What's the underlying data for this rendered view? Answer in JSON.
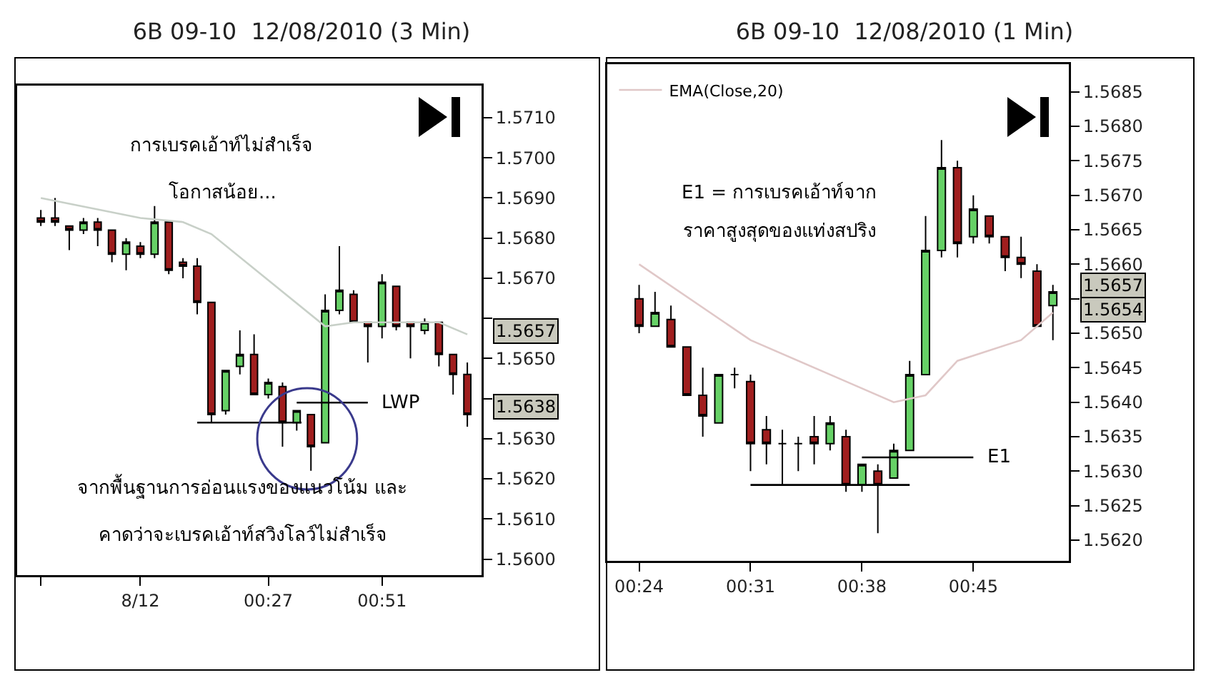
{
  "chart_data": [
    {
      "type": "candlestick",
      "title": "6B 09-10  12/08/2010 (3 Min)",
      "x": [
        "2010-08-11T23:39",
        "2010-08-11T23:42",
        "2010-08-11T23:45",
        "2010-08-11T23:48",
        "2010-08-11T23:51",
        "2010-08-11T23:54",
        "2010-08-11T23:57",
        "2010-08-12T00:00",
        "2010-08-12T00:03",
        "2010-08-12T00:06",
        "2010-08-12T00:09",
        "2010-08-12T00:12",
        "2010-08-12T00:15",
        "2010-08-12T00:18",
        "2010-08-12T00:21",
        "2010-08-12T00:24",
        "2010-08-12T00:27",
        "2010-08-12T00:30",
        "2010-08-12T00:33",
        "2010-08-12T00:36",
        "2010-08-12T00:39",
        "2010-08-12T00:42",
        "2010-08-12T00:45",
        "2010-08-12T00:48",
        "2010-08-12T00:51",
        "2010-08-12T00:54",
        "2010-08-12T00:57",
        "2010-08-12T01:00",
        "2010-08-12T01:03",
        "2010-08-12T01:06",
        "2010-08-12T01:09"
      ],
      "ohlc": [
        [
          1.5685,
          1.5687,
          1.5683,
          1.5684
        ],
        [
          1.5685,
          1.569,
          1.5683,
          1.5684
        ],
        [
          1.5683,
          1.5683,
          1.5677,
          1.5682
        ],
        [
          1.5682,
          1.5685,
          1.5681,
          1.5684
        ],
        [
          1.5684,
          1.5685,
          1.5678,
          1.5682
        ],
        [
          1.5682,
          1.5682,
          1.5674,
          1.5676
        ],
        [
          1.5676,
          1.568,
          1.5672,
          1.5679
        ],
        [
          1.5678,
          1.5679,
          1.5675,
          1.5676
        ],
        [
          1.5676,
          1.5688,
          1.5675,
          1.5684
        ],
        [
          1.5684,
          1.5684,
          1.5671,
          1.5672
        ],
        [
          1.5674,
          1.5675,
          1.567,
          1.5673
        ],
        [
          1.5673,
          1.5675,
          1.5661,
          1.5664
        ],
        [
          1.5664,
          1.5664,
          1.5634,
          1.5636
        ],
        [
          1.5637,
          1.5647,
          1.5636,
          1.5647
        ],
        [
          1.5648,
          1.5657,
          1.5646,
          1.5651
        ],
        [
          1.5651,
          1.5656,
          1.5641,
          1.5641
        ],
        [
          1.5641,
          1.5645,
          1.564,
          1.5644
        ],
        [
          1.5643,
          1.5644,
          1.5628,
          1.5634
        ],
        [
          1.5634,
          1.5637,
          1.5632,
          1.5637
        ],
        [
          1.5636,
          1.5636,
          1.5622,
          1.5628
        ],
        [
          1.5629,
          1.5666,
          1.5629,
          1.5662
        ],
        [
          1.5662,
          1.5678,
          1.5661,
          1.5667
        ],
        [
          1.5666,
          1.5667,
          1.5659,
          1.5659
        ],
        [
          1.5659,
          1.5659,
          1.5649,
          1.5658
        ],
        [
          1.5658,
          1.5671,
          1.5655,
          1.5669
        ],
        [
          1.5668,
          1.5668,
          1.5657,
          1.5658
        ],
        [
          1.5659,
          1.5659,
          1.565,
          1.5658
        ],
        [
          1.5657,
          1.566,
          1.5656,
          1.5659
        ],
        [
          1.5659,
          1.5659,
          1.5648,
          1.5651
        ],
        [
          1.5651,
          1.5651,
          1.5641,
          1.5646
        ],
        [
          1.5646,
          1.5649,
          1.5633,
          1.5636
        ]
      ],
      "colors": [
        "#a01e1e",
        "#a01e1e",
        "#a01e1e",
        "#66d166",
        "#a01e1e",
        "#a01e1e",
        "#66d166",
        "#a01e1e",
        "#66d166",
        "#a01e1e",
        "#a01e1e",
        "#a01e1e",
        "#a01e1e",
        "#66d166",
        "#66d166",
        "#a01e1e",
        "#66d166",
        "#a01e1e",
        "#66d166",
        "#a01e1e",
        "#66d166",
        "#66d166",
        "#a01e1e",
        "#a01e1e",
        "#66d166",
        "#a01e1e",
        "#a01e1e",
        "#66d166",
        "#a01e1e",
        "#a01e1e",
        "#a01e1e"
      ],
      "series": [
        {
          "type": "line",
          "color": "#c8d0c8",
          "x": [
            "2010-08-11T23:39",
            "2010-08-12T00:00",
            "2010-08-12T00:09",
            "2010-08-12T00:15",
            "2010-08-12T00:39",
            "2010-08-12T00:45",
            "2010-08-12T01:03",
            "2010-08-12T01:09"
          ],
          "values": [
            1.569,
            1.5685,
            1.5684,
            1.5681,
            1.5658,
            1.5659,
            1.5659,
            1.5656
          ]
        },
        {
          "type": "line",
          "color": "#000000",
          "x": [
            "2010-08-12T00:12",
            "2010-08-12T00:34"
          ],
          "values": [
            1.5634,
            1.5634
          ]
        },
        {
          "type": "line",
          "color": "#000000",
          "x": [
            "2010-08-12T00:33",
            "2010-08-12T00:48"
          ],
          "values": [
            1.5639,
            1.5639
          ]
        }
      ],
      "annotations": [
        "การเบรคเอ้าท์ไม่สำเร็จ",
        "โอกาสน้อย...",
        "จากพื้นฐานการอ่อนแรงของแนวโน้ม และ",
        "คาดว่าจะเบรคเอ้าท์สวิงโลว์ไม่สำเร็จ",
        {
          "text": "LWP",
          "x": "2010-08-12T00:48",
          "y": 1.5639
        },
        "1.5657",
        "1.5638"
      ],
      "xlim": [
        "2010-08-11T23:34",
        "2010-08-12T01:12"
      ],
      "xticks": [
        {
          "value": "2010-08-11T23:39",
          "label": null
        },
        {
          "value": "2010-08-12T00:00",
          "label": "8/12"
        },
        {
          "value": "2010-08-12T00:27",
          "label": "00:27"
        },
        {
          "value": "2010-08-12T00:51",
          "label": "00:51"
        }
      ],
      "ylim": [
        1.5596,
        1.5718
      ],
      "yticks": [
        {
          "value": 1.56,
          "label": "1.5600"
        },
        {
          "value": 1.561,
          "label": "1.5610"
        },
        {
          "value": 1.562,
          "label": "1.5620"
        },
        {
          "value": 1.563,
          "label": "1.5630"
        },
        {
          "value": 1.564,
          "label": null
        },
        {
          "value": 1.565,
          "label": "1.5650"
        },
        {
          "value": 1.566,
          "label": null
        },
        {
          "value": 1.567,
          "label": "1.5670"
        },
        {
          "value": 1.568,
          "label": "1.5680"
        },
        {
          "value": 1.569,
          "label": "1.5690"
        },
        {
          "value": 1.57,
          "label": "1.5700"
        },
        {
          "value": 1.571,
          "label": "1.5710"
        }
      ]
    },
    {
      "type": "candlestick",
      "title": "6B 09-10  12/08/2010 (1 Min)",
      "x": [
        "2010-08-12T00:24",
        "2010-08-12T00:25",
        "2010-08-12T00:26",
        "2010-08-12T00:27",
        "2010-08-12T00:28",
        "2010-08-12T00:29",
        "2010-08-12T00:30",
        "2010-08-12T00:31",
        "2010-08-12T00:32",
        "2010-08-12T00:33",
        "2010-08-12T00:34",
        "2010-08-12T00:35",
        "2010-08-12T00:36",
        "2010-08-12T00:37",
        "2010-08-12T00:38",
        "2010-08-12T00:39",
        "2010-08-12T00:40",
        "2010-08-12T00:41",
        "2010-08-12T00:42",
        "2010-08-12T00:43",
        "2010-08-12T00:44",
        "2010-08-12T00:45",
        "2010-08-12T00:46",
        "2010-08-12T00:47",
        "2010-08-12T00:48",
        "2010-08-12T00:49",
        "2010-08-12T00:50"
      ],
      "ohlc": [
        [
          1.5655,
          1.5657,
          1.565,
          1.5651
        ],
        [
          1.5651,
          1.5656,
          1.5651,
          1.5653
        ],
        [
          1.5652,
          1.5654,
          1.5648,
          1.5648
        ],
        [
          1.5648,
          1.5648,
          1.5641,
          1.5641
        ],
        [
          1.5641,
          1.5645,
          1.5635,
          1.5638
        ],
        [
          1.5637,
          1.5644,
          1.5637,
          1.5644
        ],
        [
          1.5644,
          1.5645,
          1.5642,
          1.5644
        ],
        [
          1.5643,
          1.5644,
          1.563,
          1.5634
        ],
        [
          1.5636,
          1.5638,
          1.5631,
          1.5634
        ],
        [
          1.5634,
          1.5636,
          1.5628,
          1.5634
        ],
        [
          1.5634,
          1.5635,
          1.563,
          1.5634
        ],
        [
          1.5635,
          1.5638,
          1.5631,
          1.5634
        ],
        [
          1.5634,
          1.5638,
          1.5633,
          1.5637
        ],
        [
          1.5635,
          1.5636,
          1.5627,
          1.5628
        ],
        [
          1.5628,
          1.5631,
          1.5627,
          1.5631
        ],
        [
          1.563,
          1.5631,
          1.5621,
          1.5628
        ],
        [
          1.5629,
          1.5634,
          1.5629,
          1.5633
        ],
        [
          1.5633,
          1.5646,
          1.5633,
          1.5644
        ],
        [
          1.5644,
          1.5667,
          1.5644,
          1.5662
        ],
        [
          1.5662,
          1.5678,
          1.5661,
          1.5674
        ],
        [
          1.5674,
          1.5675,
          1.5661,
          1.5663
        ],
        [
          1.5664,
          1.567,
          1.5663,
          1.5668
        ],
        [
          1.5667,
          1.5667,
          1.5663,
          1.5664
        ],
        [
          1.5664,
          1.5664,
          1.5659,
          1.5661
        ],
        [
          1.5661,
          1.5664,
          1.5658,
          1.566
        ],
        [
          1.5659,
          1.566,
          1.5651,
          1.5651
        ],
        [
          1.5654,
          1.5657,
          1.5649,
          1.5656
        ]
      ],
      "colors": [
        "#a01e1e",
        "#66d166",
        "#a01e1e",
        "#a01e1e",
        "#a01e1e",
        "#66d166",
        "#000000",
        "#a01e1e",
        "#a01e1e",
        "#000000",
        "#000000",
        "#a01e1e",
        "#66d166",
        "#a01e1e",
        "#66d166",
        "#a01e1e",
        "#66d166",
        "#66d166",
        "#66d166",
        "#66d166",
        "#a01e1e",
        "#66d166",
        "#a01e1e",
        "#a01e1e",
        "#a01e1e",
        "#a01e1e",
        "#66d166"
      ],
      "series": [
        {
          "type": "line",
          "name": "EMA(Close,20)",
          "color": "#e0c8c8",
          "x": [
            "2010-08-12T00:24",
            "2010-08-12T00:31",
            "2010-08-12T00:37",
            "2010-08-12T00:40",
            "2010-08-12T00:42",
            "2010-08-12T00:44",
            "2010-08-12T00:48",
            "2010-08-12T00:50"
          ],
          "values": [
            1.566,
            1.5649,
            1.5643,
            1.564,
            1.5641,
            1.5646,
            1.5649,
            1.5653
          ]
        },
        {
          "type": "line",
          "color": "#000000",
          "x": [
            "2010-08-12T00:31",
            "2010-08-12T00:41"
          ],
          "values": [
            1.5628,
            1.5628
          ]
        },
        {
          "type": "line",
          "color": "#000000",
          "x": [
            "2010-08-12T00:38",
            "2010-08-12T00:45"
          ],
          "values": [
            1.5632,
            1.5632
          ]
        }
      ],
      "annotations": [
        "E1 = การเบรคเอ้าท์จาก",
        "ราคาสูงสุดของแท่งสปริง",
        {
          "text": "E1",
          "x": "2010-08-12T00:45",
          "y": 1.5632
        },
        "1.5657",
        "1.5654"
      ],
      "legend": "top left",
      "xlim": [
        "2010-08-12T00:22",
        "2010-08-12T00:51"
      ],
      "xticks": [
        {
          "value": "2010-08-12T00:24",
          "label": "00:24"
        },
        {
          "value": "2010-08-12T00:31",
          "label": "00:31"
        },
        {
          "value": "2010-08-12T00:38",
          "label": "00:38"
        },
        {
          "value": "2010-08-12T00:45",
          "label": "00:45"
        }
      ],
      "ylim": [
        1.5617,
        1.5689
      ],
      "yticks": [
        {
          "value": 1.562,
          "label": "1.5620"
        },
        {
          "value": 1.5625,
          "label": "1.5625"
        },
        {
          "value": 1.563,
          "label": "1.5630"
        },
        {
          "value": 1.5635,
          "label": "1.5635"
        },
        {
          "value": 1.564,
          "label": "1.5640"
        },
        {
          "value": 1.5645,
          "label": "1.5645"
        },
        {
          "value": 1.565,
          "label": "1.5650"
        },
        {
          "value": 1.5655,
          "label": null
        },
        {
          "value": 1.566,
          "label": "1.5660"
        },
        {
          "value": 1.5665,
          "label": "1.5665"
        },
        {
          "value": 1.567,
          "label": "1.5670"
        },
        {
          "value": 1.5675,
          "label": "1.5675"
        },
        {
          "value": 1.568,
          "label": "1.5680"
        },
        {
          "value": 1.5685,
          "label": "1.5685"
        }
      ]
    }
  ]
}
